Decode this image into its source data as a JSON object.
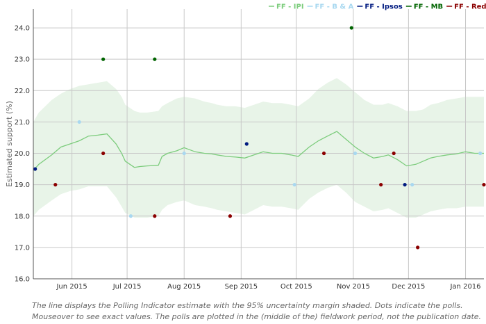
{
  "chart_data": {
    "type": "line",
    "title": "",
    "ylabel": "Estimated support (%)",
    "xlabel": "",
    "ylim": [
      16.0,
      24.6
    ],
    "y_ticks": [
      "16.0",
      "17.0",
      "18.0",
      "19.0",
      "20.0",
      "21.0",
      "22.0",
      "23.0",
      "24.0"
    ],
    "x_range_days": [
      0,
      245
    ],
    "x_ticks": [
      {
        "label": "Jun 2015",
        "day": 21
      },
      {
        "label": "Jul 2015",
        "day": 51
      },
      {
        "label": "Aug 2015",
        "day": 82
      },
      {
        "label": "Sep 2015",
        "day": 113
      },
      {
        "label": "Oct 2015",
        "day": 143
      },
      {
        "label": "Nov 2015",
        "day": 174
      },
      {
        "label": "Dec 2015",
        "day": 204
      },
      {
        "label": "Jan 2016",
        "day": 235
      }
    ],
    "legend": [
      {
        "label": "FF - IPI",
        "color": "#7ccc7c"
      },
      {
        "label": "FF - B & A",
        "color": "#a8d8f0"
      },
      {
        "label": "FF - Ipsos",
        "color": "#001a80"
      },
      {
        "label": "FF - MB",
        "color": "#006400"
      },
      {
        "label": "FF - Red C",
        "color": "#8b0000"
      }
    ],
    "estimate": {
      "name": "Polling Indicator",
      "color": "#7ccc7c",
      "band_color": "#e8f4e8",
      "x": [
        0,
        3,
        10,
        15,
        20,
        25,
        30,
        35,
        40,
        45,
        48,
        50,
        55,
        58,
        62,
        68,
        70,
        73,
        78,
        82,
        88,
        93,
        97,
        100,
        105,
        110,
        115,
        120,
        125,
        130,
        135,
        140,
        144,
        150,
        155,
        160,
        165,
        170,
        175,
        180,
        185,
        190,
        193,
        198,
        203,
        208,
        212,
        216,
        220,
        225,
        230,
        235,
        240,
        245
      ],
      "y": [
        19.45,
        19.65,
        19.95,
        20.2,
        20.3,
        20.4,
        20.55,
        20.58,
        20.62,
        20.3,
        20.0,
        19.75,
        19.55,
        19.58,
        19.6,
        19.62,
        19.9,
        20.0,
        20.08,
        20.18,
        20.05,
        20.0,
        19.98,
        19.95,
        19.9,
        19.88,
        19.85,
        19.95,
        20.05,
        20.0,
        20.0,
        19.95,
        19.9,
        20.2,
        20.4,
        20.55,
        20.7,
        20.45,
        20.2,
        20.0,
        19.85,
        19.9,
        19.95,
        19.8,
        19.6,
        19.65,
        19.75,
        19.85,
        19.9,
        19.95,
        19.98,
        20.05,
        20.0,
        20.0
      ],
      "upper": [
        21.0,
        21.3,
        21.7,
        21.9,
        22.05,
        22.15,
        22.2,
        22.25,
        22.3,
        22.05,
        21.8,
        21.55,
        21.35,
        21.3,
        21.3,
        21.35,
        21.5,
        21.6,
        21.75,
        21.8,
        21.75,
        21.65,
        21.6,
        21.55,
        21.5,
        21.5,
        21.45,
        21.55,
        21.65,
        21.6,
        21.6,
        21.55,
        21.5,
        21.75,
        22.05,
        22.25,
        22.4,
        22.2,
        21.95,
        21.7,
        21.55,
        21.55,
        21.6,
        21.5,
        21.35,
        21.35,
        21.4,
        21.55,
        21.6,
        21.7,
        21.75,
        21.8,
        21.8,
        21.8
      ],
      "lower": [
        18.0,
        18.2,
        18.5,
        18.7,
        18.8,
        18.85,
        18.95,
        18.95,
        18.95,
        18.6,
        18.3,
        18.1,
        17.95,
        17.95,
        17.95,
        18.0,
        18.2,
        18.35,
        18.45,
        18.5,
        18.35,
        18.3,
        18.25,
        18.2,
        18.15,
        18.1,
        18.05,
        18.2,
        18.35,
        18.3,
        18.3,
        18.25,
        18.2,
        18.55,
        18.75,
        18.9,
        19.0,
        18.75,
        18.45,
        18.3,
        18.15,
        18.2,
        18.25,
        18.1,
        17.95,
        17.95,
        18.05,
        18.15,
        18.2,
        18.25,
        18.25,
        18.3,
        18.3,
        18.3
      ]
    },
    "series": [
      {
        "name": "FF - B & A",
        "color": "#a8d8f0",
        "points": [
          [
            25,
            21.0
          ],
          [
            53,
            18.0
          ],
          [
            82,
            20.0
          ],
          [
            142,
            19.0
          ],
          [
            175,
            20.0
          ],
          [
            206,
            19.0
          ],
          [
            243,
            20.0
          ]
        ]
      },
      {
        "name": "FF - Ipsos",
        "color": "#001a80",
        "points": [
          [
            1,
            19.5
          ],
          [
            116,
            20.3
          ],
          [
            202,
            19.0
          ]
        ]
      },
      {
        "name": "FF - MB",
        "color": "#006400",
        "points": [
          [
            38,
            23.0
          ],
          [
            66,
            23.0
          ],
          [
            173,
            24.0
          ]
        ]
      },
      {
        "name": "FF - Red C",
        "color": "#8b0000",
        "points": [
          [
            12,
            19.0
          ],
          [
            38,
            20.0
          ],
          [
            66,
            18.0
          ],
          [
            107,
            18.0
          ],
          [
            158,
            20.0
          ],
          [
            189,
            19.0
          ],
          [
            196,
            20.0
          ],
          [
            209,
            17.0
          ],
          [
            245,
            19.0
          ]
        ]
      }
    ]
  },
  "caption": "The line displays the Polling Indicator estimate with the 95% uncertainty margin shaded. Dots indicate the polls. Mouseover to see exact values. The polls are plotted in the (middle of the) fieldwork period, not the publication date."
}
